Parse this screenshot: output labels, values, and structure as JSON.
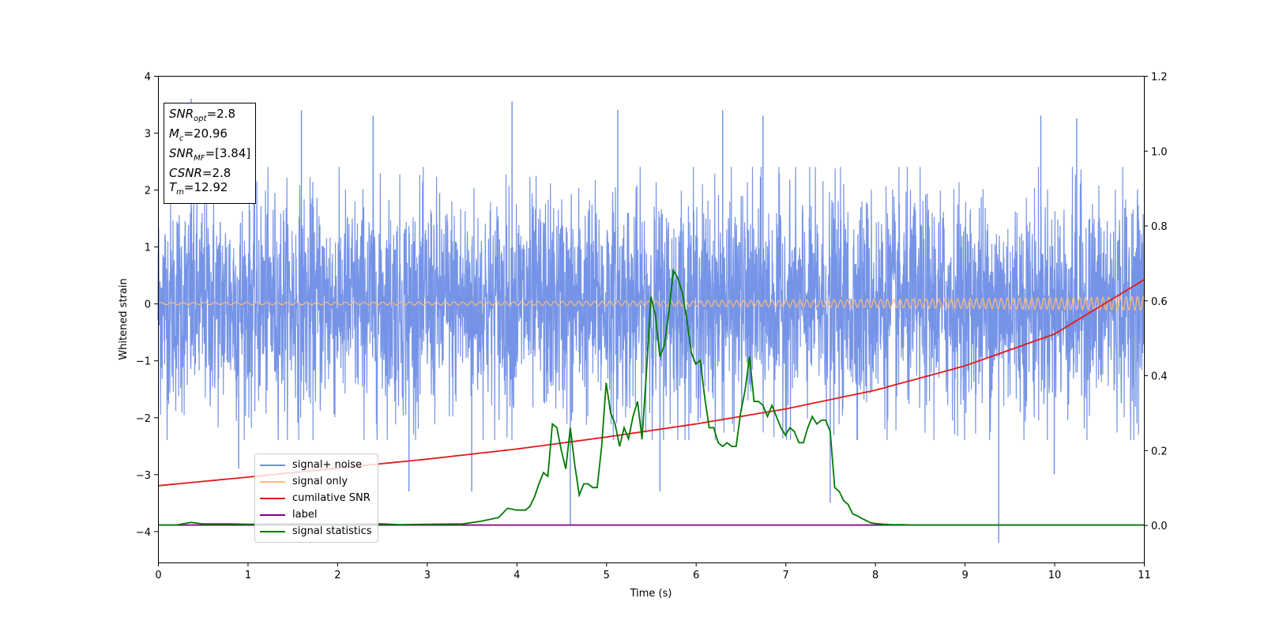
{
  "chart_data": {
    "type": "line",
    "xlabel": "Time (s)",
    "ylabel": "Whitened strain",
    "xlim": [
      0,
      11
    ],
    "ylim_left": [
      -4.55,
      4.0
    ],
    "ylim_right": [
      -0.1,
      1.2
    ],
    "x_ticks": [
      "0",
      "1",
      "2",
      "3",
      "4",
      "5",
      "6",
      "7",
      "8",
      "9",
      "10",
      "11"
    ],
    "y_ticks_left": [
      "−4",
      "−3",
      "−2",
      "−1",
      "0",
      "1",
      "2",
      "3",
      "4"
    ],
    "y_ticks_right": [
      "0.0",
      "0.2",
      "0.4",
      "0.6",
      "0.8",
      "1.0",
      "1.2"
    ],
    "grid": false,
    "legend_location": "lower-left",
    "colors": {
      "signal_noise": "#6f8ee6",
      "signal_only": "#ffbb78",
      "cumulative_snr": "#e31a1c",
      "label": "#800080",
      "signal_statistics": "#007a00"
    },
    "series": [
      {
        "name": "signal+ noise",
        "axis": "left",
        "description_envelope": {
          "t": [
            0,
            1,
            2,
            3,
            4,
            5,
            6,
            7,
            8,
            9,
            10,
            11
          ],
          "upper": [
            2.2,
            2.3,
            2.2,
            2.2,
            2.3,
            2.3,
            2.2,
            2.3,
            2.2,
            2.2,
            2.3,
            2.3
          ],
          "lower": [
            -2.2,
            -2.3,
            -2.2,
            -2.2,
            -2.3,
            -2.3,
            -2.2,
            -2.3,
            -2.2,
            -2.2,
            -2.3,
            -2.3
          ]
        },
        "spikes": [
          [
            0.37,
            3.6
          ],
          [
            0.9,
            -2.9
          ],
          [
            1.6,
            3.4
          ],
          [
            2.4,
            3.3
          ],
          [
            2.8,
            -3.3
          ],
          [
            3.5,
            -3.3
          ],
          [
            3.95,
            3.55
          ],
          [
            4.6,
            -3.9
          ],
          [
            5.13,
            3.4
          ],
          [
            5.6,
            -3.3
          ],
          [
            6.3,
            3.4
          ],
          [
            6.75,
            3.3
          ],
          [
            7.5,
            -3.5
          ],
          [
            9.38,
            -4.2
          ],
          [
            9.85,
            3.3
          ],
          [
            10.25,
            3.25
          ],
          [
            10.0,
            -3.0
          ]
        ]
      },
      {
        "name": "signal only",
        "axis": "left",
        "amplitude_start": 0.02,
        "amplitude_end": 0.12
      },
      {
        "name": "cumilative SNR",
        "axis": "right",
        "x": [
          0,
          1,
          2,
          3,
          4,
          5,
          6,
          7,
          8,
          9,
          10,
          11
        ],
        "y": [
          0.105,
          0.128,
          0.152,
          0.176,
          0.203,
          0.235,
          0.27,
          0.31,
          0.36,
          0.425,
          0.51,
          0.655
        ]
      },
      {
        "name": "label",
        "axis": "right",
        "x": [
          0,
          11
        ],
        "y": [
          0.0,
          0.0
        ]
      },
      {
        "name": "signal statistics",
        "axis": "right",
        "x": [
          0.0,
          0.2,
          0.37,
          0.5,
          0.8,
          1.0,
          1.5,
          2.0,
          2.5,
          2.7,
          3.0,
          3.4,
          3.6,
          3.7,
          3.8,
          3.9,
          4.0,
          4.1,
          4.15,
          4.2,
          4.25,
          4.3,
          4.35,
          4.4,
          4.45,
          4.5,
          4.55,
          4.6,
          4.65,
          4.7,
          4.75,
          4.8,
          4.85,
          4.9,
          4.95,
          5.0,
          5.05,
          5.1,
          5.15,
          5.2,
          5.25,
          5.3,
          5.35,
          5.4,
          5.45,
          5.5,
          5.55,
          5.6,
          5.65,
          5.7,
          5.75,
          5.8,
          5.85,
          5.9,
          5.95,
          6.0,
          6.05,
          6.1,
          6.15,
          6.2,
          6.25,
          6.3,
          6.35,
          6.4,
          6.45,
          6.5,
          6.55,
          6.6,
          6.65,
          6.7,
          6.75,
          6.8,
          6.85,
          6.9,
          6.95,
          7.0,
          7.05,
          7.1,
          7.15,
          7.2,
          7.25,
          7.3,
          7.35,
          7.4,
          7.45,
          7.5,
          7.55,
          7.6,
          7.65,
          7.7,
          7.75,
          7.8,
          7.85,
          7.9,
          7.95,
          8.0,
          8.05,
          8.1,
          8.2,
          8.3,
          8.4,
          8.5,
          8.8,
          9.0,
          9.5,
          10.0,
          11.0
        ],
        "y": [
          0.0,
          0.0,
          0.007,
          0.003,
          0.003,
          0.002,
          0.003,
          0.002,
          0.003,
          0.001,
          0.002,
          0.003,
          0.01,
          0.015,
          0.02,
          0.045,
          0.04,
          0.04,
          0.05,
          0.075,
          0.11,
          0.14,
          0.13,
          0.27,
          0.26,
          0.2,
          0.15,
          0.26,
          0.16,
          0.08,
          0.11,
          0.11,
          0.1,
          0.1,
          0.21,
          0.38,
          0.3,
          0.27,
          0.21,
          0.26,
          0.23,
          0.29,
          0.33,
          0.23,
          0.41,
          0.61,
          0.56,
          0.45,
          0.48,
          0.57,
          0.68,
          0.66,
          0.62,
          0.55,
          0.46,
          0.43,
          0.44,
          0.34,
          0.26,
          0.26,
          0.22,
          0.21,
          0.22,
          0.21,
          0.21,
          0.3,
          0.36,
          0.45,
          0.33,
          0.33,
          0.32,
          0.29,
          0.32,
          0.29,
          0.26,
          0.24,
          0.26,
          0.25,
          0.22,
          0.22,
          0.26,
          0.29,
          0.27,
          0.28,
          0.28,
          0.25,
          0.1,
          0.09,
          0.065,
          0.055,
          0.03,
          0.025,
          0.018,
          0.012,
          0.006,
          0.004,
          0.003,
          0.002,
          0.001,
          0.001,
          0.0,
          0.0,
          0.0,
          0.0,
          0.0,
          0.0,
          0.0
        ]
      }
    ]
  },
  "info_box": {
    "snr_opt": {
      "var": "SNR",
      "sub": "opt",
      "value": "=2.8"
    },
    "mc": {
      "var": "M",
      "sub": "c",
      "value": "=20.96"
    },
    "snr_mf": {
      "var": "SNR",
      "sub": "MF",
      "value": "=[3.84]"
    },
    "csnr": {
      "var": "CSNR",
      "sub": "",
      "value": "=2.8"
    },
    "tm": {
      "var": "T",
      "sub": "m",
      "value": "=12.92"
    }
  },
  "legend": [
    {
      "label": "signal+ noise",
      "color": "#6f8ee6"
    },
    {
      "label": "signal only",
      "color": "#ffbb78"
    },
    {
      "label": "cumilative SNR",
      "color": "#e31a1c"
    },
    {
      "label": "label",
      "color": "#800080"
    },
    {
      "label": "signal statistics",
      "color": "#007a00"
    }
  ]
}
